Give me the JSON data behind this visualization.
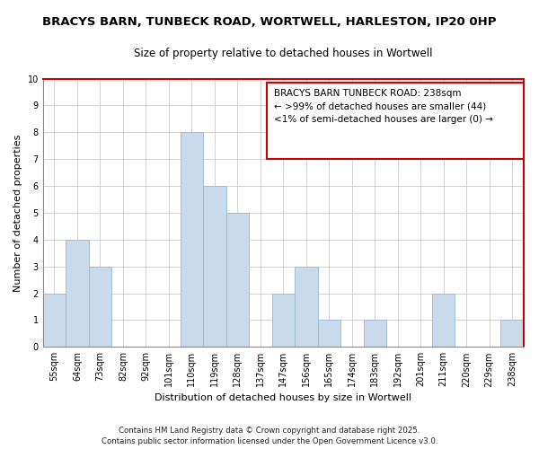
{
  "title": "BRACYS BARN, TUNBECK ROAD, WORTWELL, HARLESTON, IP20 0HP",
  "subtitle": "Size of property relative to detached houses in Wortwell",
  "xlabel": "Distribution of detached houses by size in Wortwell",
  "ylabel": "Number of detached properties",
  "categories": [
    "55sqm",
    "64sqm",
    "73sqm",
    "82sqm",
    "92sqm",
    "101sqm",
    "110sqm",
    "119sqm",
    "128sqm",
    "137sqm",
    "147sqm",
    "156sqm",
    "165sqm",
    "174sqm",
    "183sqm",
    "192sqm",
    "201sqm",
    "211sqm",
    "220sqm",
    "229sqm",
    "238sqm"
  ],
  "values": [
    2,
    4,
    3,
    0,
    0,
    0,
    8,
    6,
    5,
    0,
    2,
    3,
    1,
    0,
    1,
    0,
    0,
    2,
    0,
    0,
    1
  ],
  "bar_color": "#c9daea",
  "bar_edge_color": "#9ab8cc",
  "ylim": [
    0,
    10
  ],
  "yticks": [
    0,
    1,
    2,
    3,
    4,
    5,
    6,
    7,
    8,
    9,
    10
  ],
  "legend_title": "BRACYS BARN TUNBECK ROAD: 238sqm",
  "legend_line1": "← >99% of detached houses are smaller (44)",
  "legend_line2": "<1% of semi-detached houses are larger (0) →",
  "legend_box_color": "#cc0000",
  "footnote1": "Contains HM Land Registry data © Crown copyright and database right 2025.",
  "footnote2": "Contains public sector information licensed under the Open Government Licence v3.0.",
  "grid_color": "#cccccc",
  "background_color": "#ffffff",
  "title_fontsize": 9.5,
  "subtitle_fontsize": 8.5,
  "axis_label_fontsize": 8,
  "tick_fontsize": 7,
  "legend_fontsize": 7.5,
  "footnote_fontsize": 6.2
}
